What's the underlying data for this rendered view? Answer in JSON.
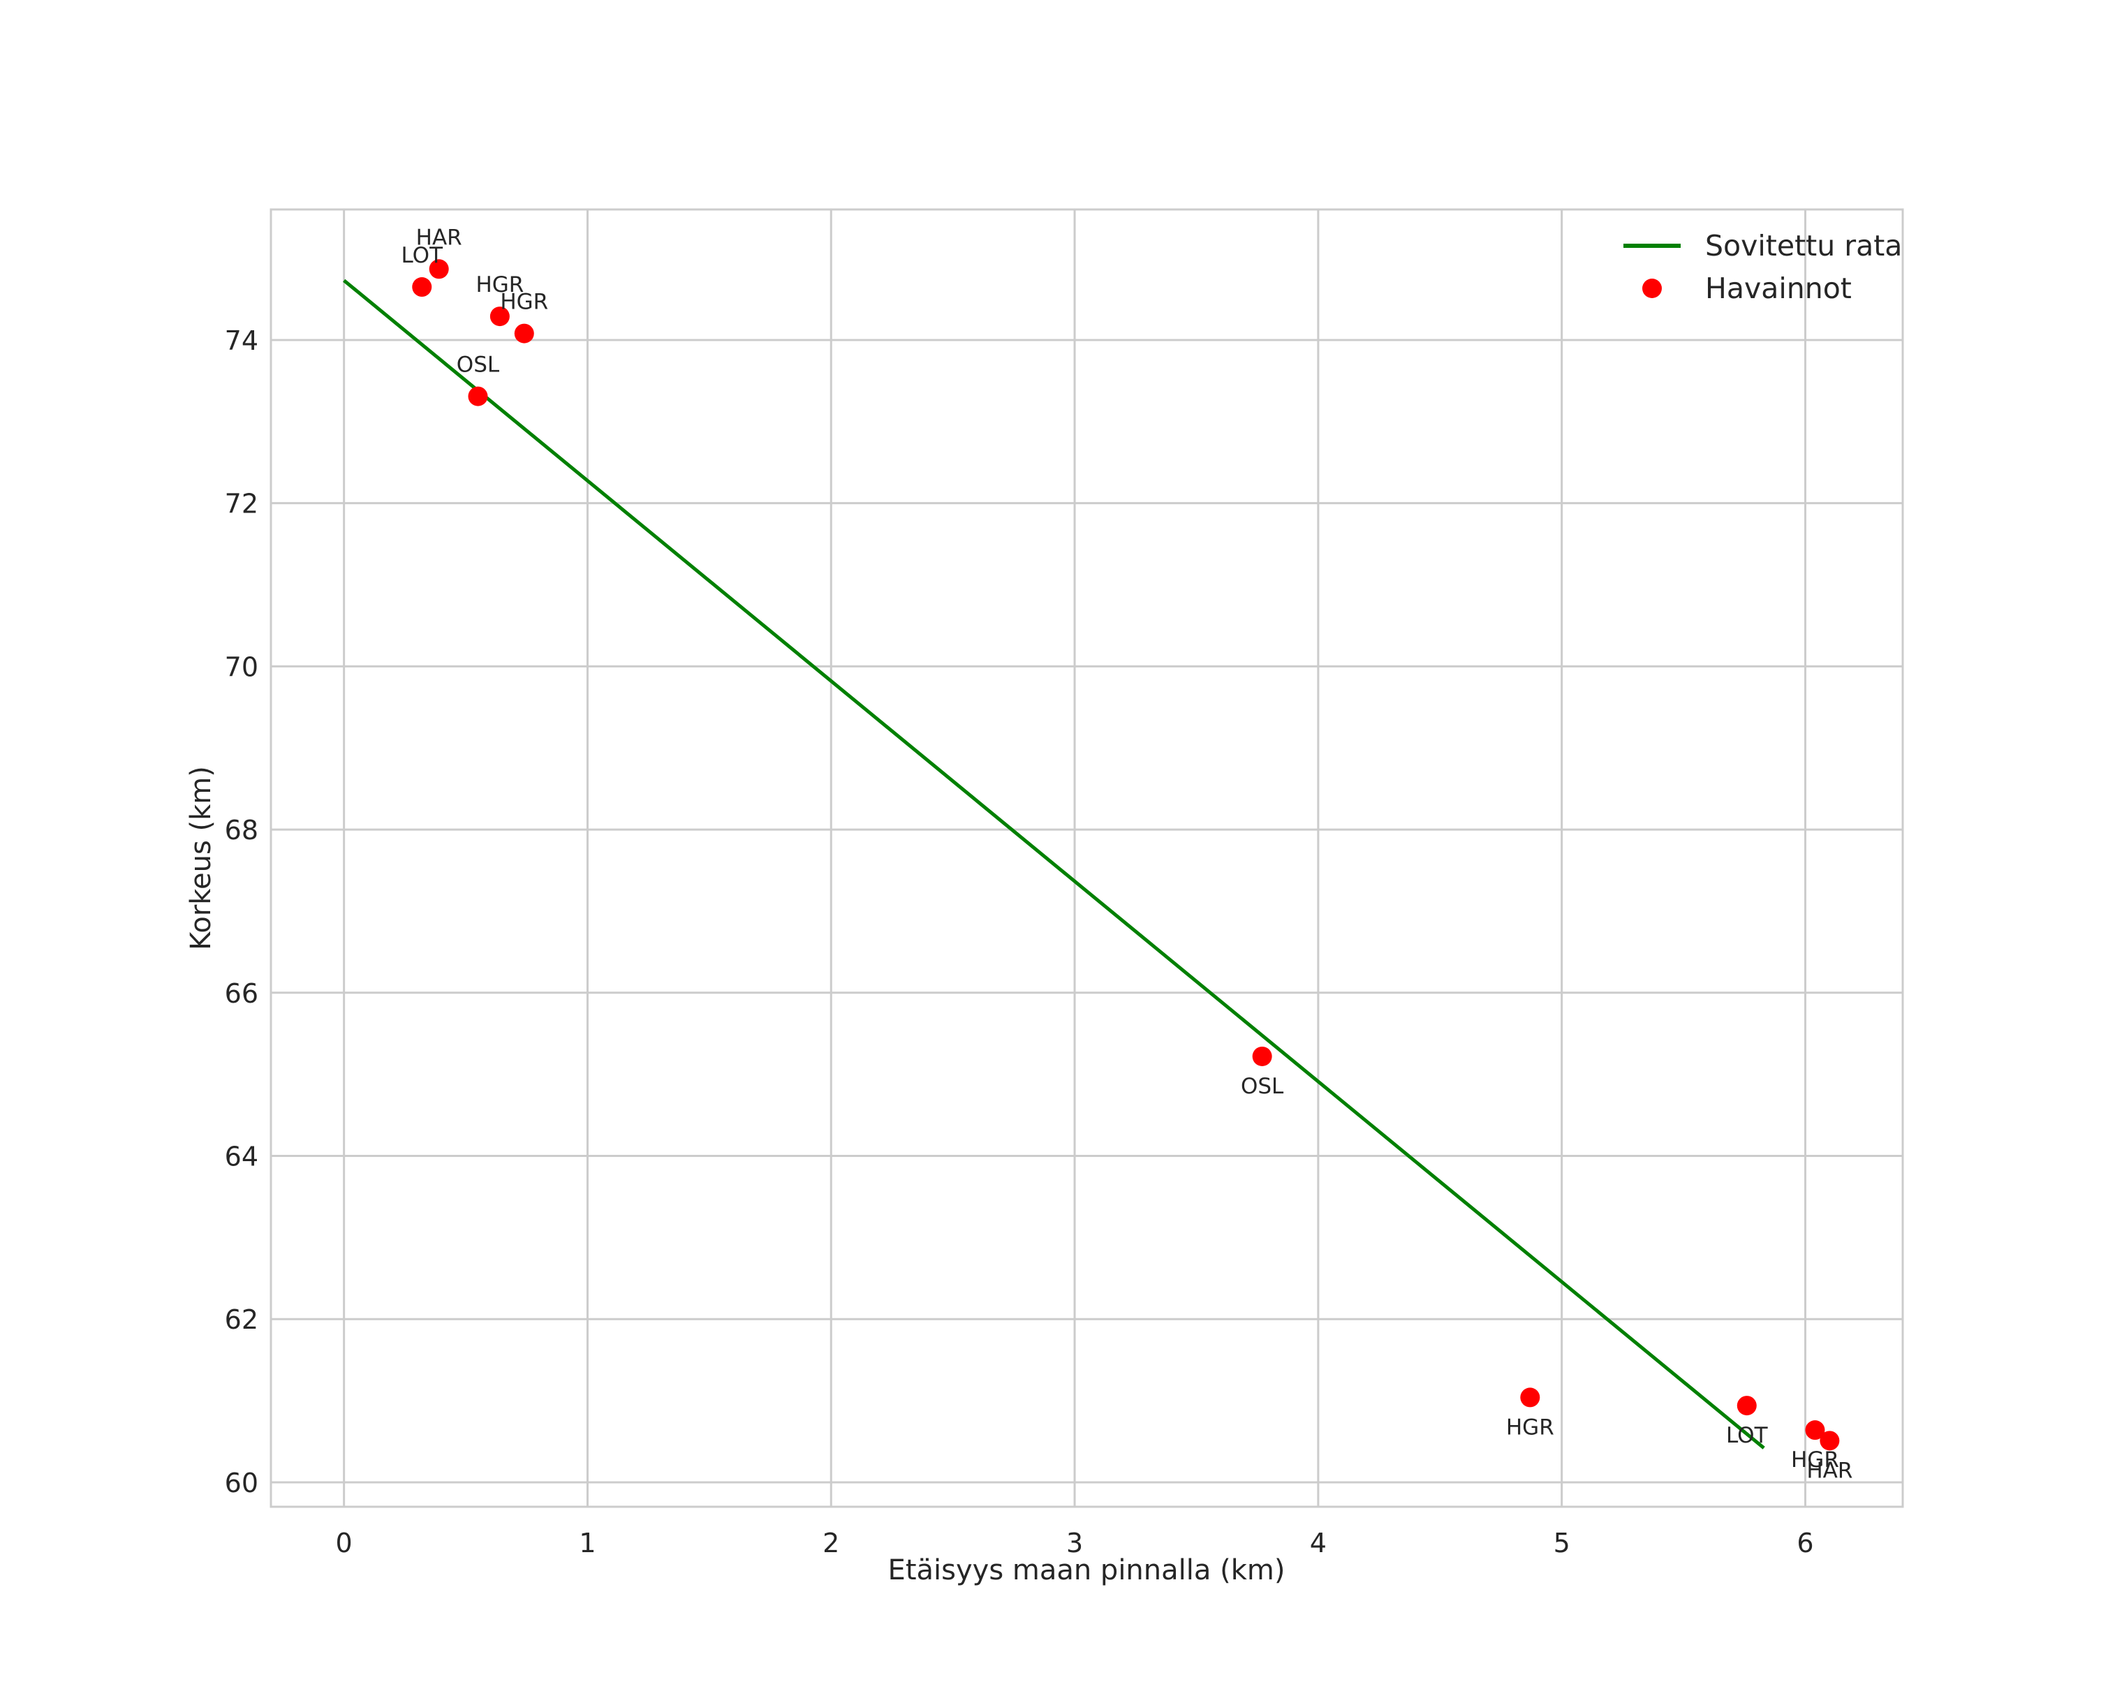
{
  "chart_data": {
    "type": "line+scatter",
    "title": "",
    "xlabel": "Etäisyys maan pinnalla (km)",
    "ylabel": "Korkeus (km)",
    "xlim": [
      -0.3,
      6.4
    ],
    "ylim": [
      59.7,
      75.6
    ],
    "xticks": [
      0,
      1,
      2,
      3,
      4,
      5,
      6
    ],
    "yticks": [
      60,
      62,
      64,
      66,
      68,
      70,
      72,
      74
    ],
    "grid": true,
    "legend_position": "top-right",
    "colors": {
      "line": "#008000",
      "points": "#ff0000",
      "grid": "#cccccc",
      "frame": "#cccccc",
      "text": "#262626"
    },
    "series": [
      {
        "name": "Sovitettu rata",
        "kind": "line",
        "x": [
          0.0,
          5.83
        ],
        "y": [
          74.73,
          60.42
        ]
      },
      {
        "name": "Havainnot",
        "kind": "scatter",
        "points": [
          {
            "x": 0.39,
            "y": 74.87,
            "label": "HAR",
            "label_pos": "above"
          },
          {
            "x": 0.32,
            "y": 74.65,
            "label": "LOT",
            "label_pos": "above"
          },
          {
            "x": 0.64,
            "y": 74.29,
            "label": "HGR",
            "label_pos": "above"
          },
          {
            "x": 0.74,
            "y": 74.08,
            "label": "HGR",
            "label_pos": "above"
          },
          {
            "x": 0.55,
            "y": 73.31,
            "label": "OSL",
            "label_pos": "above"
          },
          {
            "x": 3.77,
            "y": 65.22,
            "label": "OSL",
            "label_pos": "below"
          },
          {
            "x": 4.87,
            "y": 61.04,
            "label": "HGR",
            "label_pos": "below"
          },
          {
            "x": 5.76,
            "y": 60.94,
            "label": "LOT",
            "label_pos": "below"
          },
          {
            "x": 6.04,
            "y": 60.64,
            "label": "HGR",
            "label_pos": "below"
          },
          {
            "x": 6.1,
            "y": 60.51,
            "label": "HAR",
            "label_pos": "below"
          }
        ]
      }
    ]
  }
}
